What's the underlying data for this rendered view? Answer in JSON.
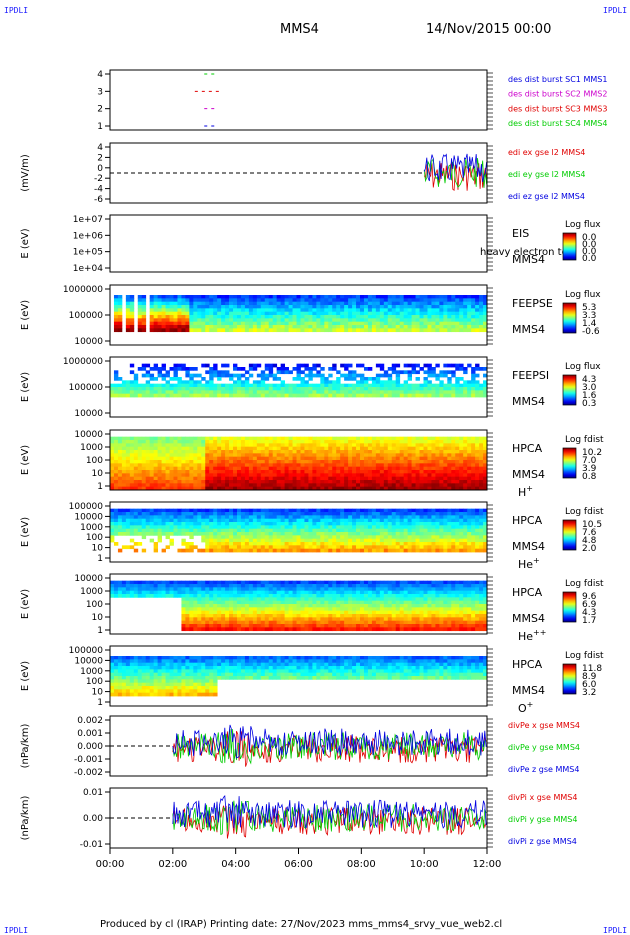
{
  "header": {
    "corner_label": "IPDLI",
    "spacecraft": "MMS4",
    "date": "14/Nov/2015 00:00"
  },
  "footer": {
    "text": "Produced by cl (IRAP)   Printing date: 27/Nov/2023   mms_mms4_srvy_vue_web2.cl"
  },
  "colors": {
    "red": "#e00000",
    "green": "#00cc00",
    "blue": "#0000e0",
    "magenta": "#cc00cc"
  },
  "chart_data": {
    "type": "multi-panel time series",
    "time_axis": {
      "ticks": [
        "00:00",
        "02:00",
        "04:00",
        "06:00",
        "08:00",
        "10:00",
        "12:00"
      ],
      "range_hours": [
        0,
        12
      ]
    },
    "panels": [
      {
        "id": "burst",
        "type": "timeline",
        "yticks": [
          "4",
          "3",
          "2",
          "1"
        ],
        "legend": [
          {
            "label": "des dist burst SC1 MMS1",
            "color": "#0000e0"
          },
          {
            "label": "des dist burst SC2 MMS2",
            "color": "#cc00cc"
          },
          {
            "label": "des dist burst SC3 MMS3",
            "color": "#e00000"
          },
          {
            "label": "des dist burst SC4 MMS4",
            "color": "#00cc00"
          }
        ],
        "segments": [
          {
            "sc": 4,
            "start": 3.0,
            "end": 3.4
          },
          {
            "sc": 3,
            "start": 2.7,
            "end": 3.5
          },
          {
            "sc": 2,
            "start": 3.0,
            "end": 3.4
          },
          {
            "sc": 1,
            "start": 3.0,
            "end": 3.4
          }
        ]
      },
      {
        "id": "edi",
        "type": "line",
        "ylabel": "(mV/m)",
        "yticks": [
          "4",
          "2",
          "0",
          "-2",
          "-4",
          "-6"
        ],
        "ylim": [
          -6,
          4.5
        ],
        "legend": [
          {
            "label": "edi ex gse l2 MMS4",
            "color": "#e00000"
          },
          {
            "label": "edi ey gse l2 MMS4",
            "color": "#00cc00"
          },
          {
            "label": "edi ez gse l2 MMS4",
            "color": "#0000e0"
          }
        ],
        "data_start_hours": 10.0
      },
      {
        "id": "eis",
        "type": "heatmap",
        "ylabel": "E (eV)",
        "yticks": [
          "1e+07",
          "1e+06",
          "1e+05",
          "1e+04"
        ],
        "labels": [
          "EIS",
          "MMS4"
        ],
        "note": "heavy electron to",
        "colorbar": {
          "title": "Log flux",
          "ticks": [
            "0.0",
            "0.0",
            "0.0",
            "0.0"
          ]
        }
      },
      {
        "id": "feepse",
        "type": "heatmap",
        "ylabel": "E (eV)",
        "yticks": [
          "1000000",
          "100000",
          "10000"
        ],
        "labels": [
          "FEEPSE",
          "MMS4"
        ],
        "colorbar": {
          "title": "Log flux",
          "ticks": [
            "5.3",
            "3.3",
            "1.4",
            "-0.6"
          ]
        }
      },
      {
        "id": "feepsi",
        "type": "heatmap",
        "ylabel": "E (eV)",
        "yticks": [
          "1000000",
          "100000",
          "10000"
        ],
        "labels": [
          "FEEPSI",
          "MMS4"
        ],
        "colorbar": {
          "title": "Log flux",
          "ticks": [
            "4.3",
            "3.0",
            "1.6",
            "0.3"
          ]
        }
      },
      {
        "id": "hpca_h",
        "type": "heatmap",
        "ylabel": "E (eV)",
        "yticks": [
          "10000",
          "1000",
          "100",
          "10",
          "1"
        ],
        "labels": [
          "HPCA",
          "MMS4"
        ],
        "species": "H",
        "charge": "+",
        "colorbar": {
          "title": "Log fdist",
          "ticks": [
            "10.2",
            "7.0",
            "3.9",
            "0.8"
          ]
        }
      },
      {
        "id": "hpca_he",
        "type": "heatmap",
        "ylabel": "E (eV)",
        "yticks": [
          "100000",
          "10000",
          "1000",
          "100",
          "10",
          "1"
        ],
        "labels": [
          "HPCA",
          "MMS4"
        ],
        "species": "He",
        "charge": "+",
        "colorbar": {
          "title": "Log fdist",
          "ticks": [
            "10.5",
            "7.6",
            "4.8",
            "2.0"
          ]
        }
      },
      {
        "id": "hpca_he2",
        "type": "heatmap",
        "ylabel": "E (eV)",
        "yticks": [
          "10000",
          "1000",
          "100",
          "10",
          "1"
        ],
        "labels": [
          "HPCA",
          "MMS4"
        ],
        "species": "He",
        "charge": "++",
        "colorbar": {
          "title": "Log fdist",
          "ticks": [
            "9.6",
            "6.9",
            "4.3",
            "1.7"
          ]
        }
      },
      {
        "id": "hpca_o",
        "type": "heatmap",
        "ylabel": "E (eV)",
        "yticks": [
          "100000",
          "10000",
          "1000",
          "100",
          "10",
          "1"
        ],
        "labels": [
          "HPCA",
          "MMS4"
        ],
        "species": "O",
        "charge": "+",
        "colorbar": {
          "title": "Log fdist",
          "ticks": [
            "11.8",
            "8.9",
            "6.0",
            "3.2"
          ]
        }
      },
      {
        "id": "divpe",
        "type": "line",
        "ylabel": "(nPa/km)",
        "yticks": [
          "0.002",
          "0.001",
          "0.000",
          "-0.001",
          "-0.002"
        ],
        "ylim": [
          -0.0025,
          0.0025
        ],
        "legend": [
          {
            "label": "divPe x gse MMS4",
            "color": "#e00000"
          },
          {
            "label": "divPe y gse MMS4",
            "color": "#00cc00"
          },
          {
            "label": "divPe z gse MMS4",
            "color": "#0000e0"
          }
        ],
        "data_start_hours": 2.0
      },
      {
        "id": "divpi",
        "type": "line",
        "ylabel": "(nPa/km)",
        "yticks": [
          "0.01",
          "0.00",
          "-0.01"
        ],
        "ylim": [
          -0.015,
          0.015
        ],
        "legend": [
          {
            "label": "divPi x gse MMS4",
            "color": "#e00000"
          },
          {
            "label": "divPi y gse MMS4",
            "color": "#00cc00"
          },
          {
            "label": "divPi z gse MMS4",
            "color": "#0000e0"
          }
        ],
        "data_start_hours": 2.0
      }
    ]
  }
}
